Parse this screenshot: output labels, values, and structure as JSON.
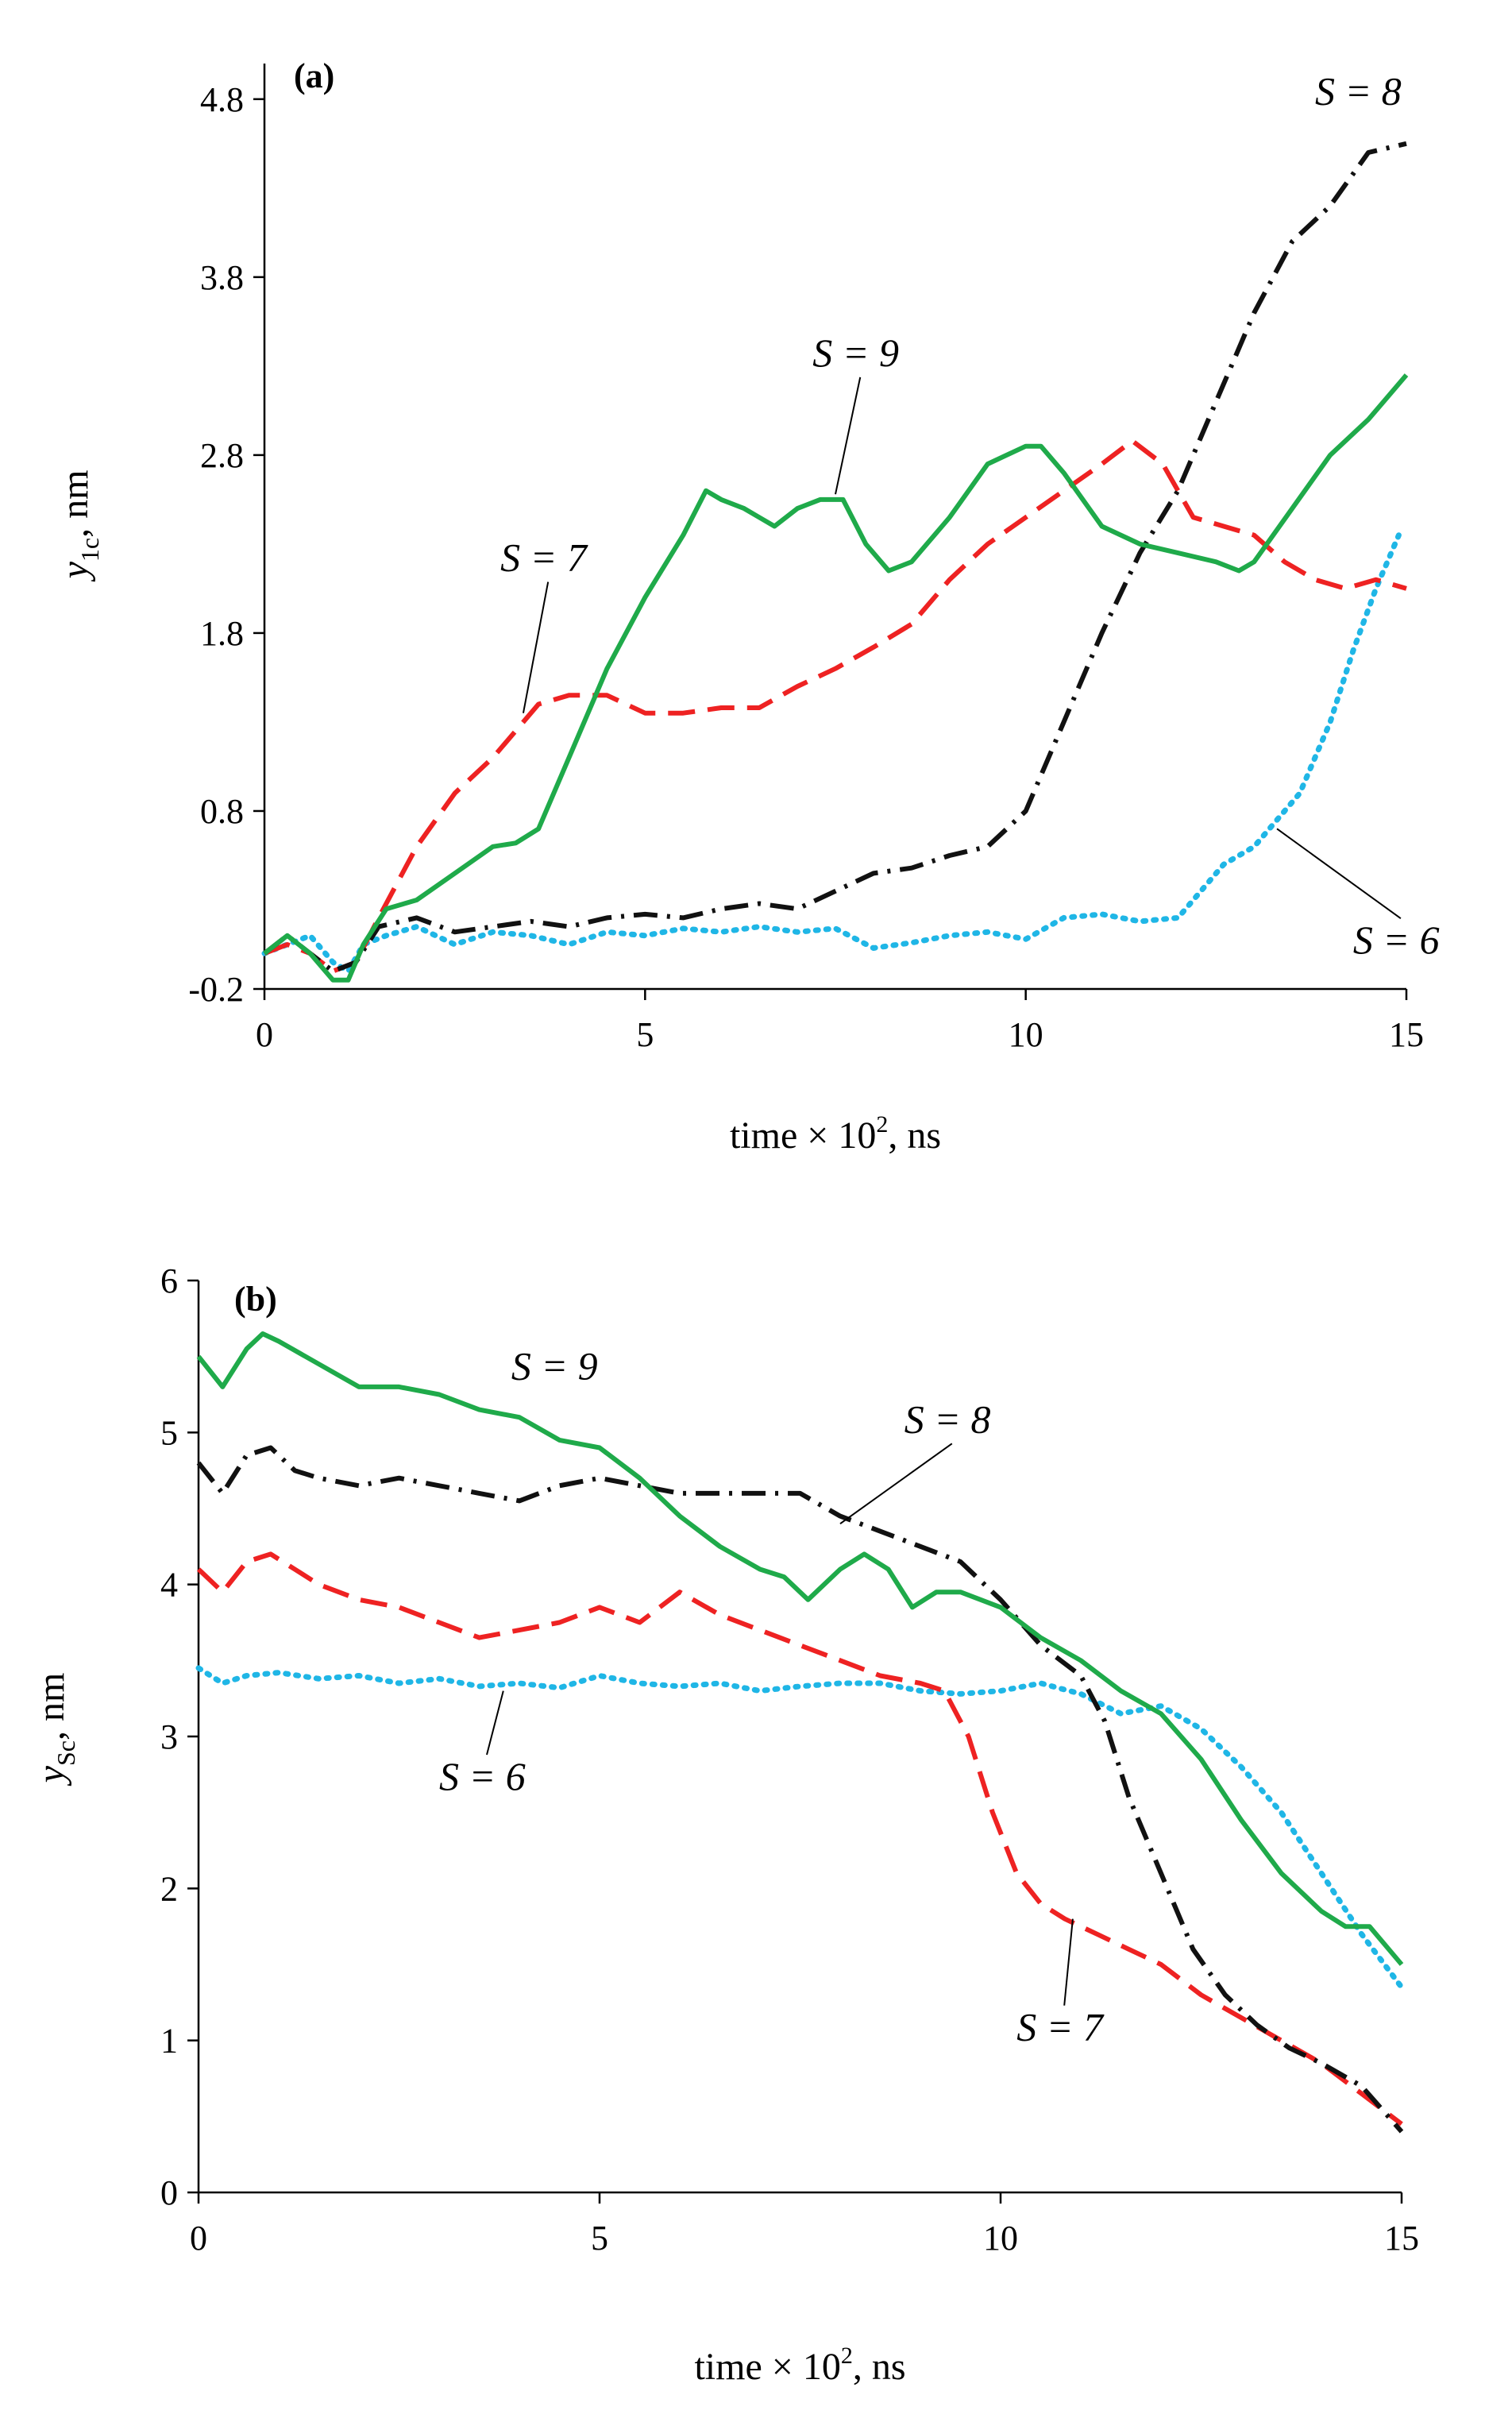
{
  "chart_data": [
    {
      "type": "line",
      "panel_label": "(a)",
      "ylabel_var": "y",
      "ylabel_sub": "1c",
      "ylabel_unit": ",  nm",
      "xlabel_pre": "time × 10",
      "xlabel_sup": "2",
      "xlabel_post": ", ns",
      "xlim": [
        0,
        15
      ],
      "ylim": [
        -0.2,
        5.0
      ],
      "xticks": [
        0,
        5,
        10,
        15
      ],
      "xtick_labels": [
        "0",
        "5",
        "10",
        "15"
      ],
      "yticks": [
        -0.2,
        0.8,
        1.8,
        2.8,
        3.8,
        4.8
      ],
      "ytick_labels": [
        "-0.2",
        "0.8",
        "1.8",
        "2.8",
        "3.8",
        "4.8"
      ],
      "grid": false,
      "series": [
        {
          "label": "S = 6",
          "color": "#1fb6e6",
          "style": "dotted",
          "x": [
            0,
            0.3,
            0.6,
            0.9,
            1.1,
            1.3,
            1.6,
            2.0,
            2.5,
            3.0,
            3.5,
            4.0,
            4.5,
            5.0,
            5.5,
            6.0,
            6.5,
            7.0,
            7.5,
            8.0,
            8.5,
            9.0,
            9.5,
            10.0,
            10.5,
            11.0,
            11.5,
            12.0,
            12.3,
            12.6,
            13.0,
            13.3,
            13.6,
            14.0,
            14.3,
            14.6,
            14.9
          ],
          "y": [
            0.0,
            0.05,
            0.1,
            -0.05,
            -0.1,
            0.05,
            0.1,
            0.15,
            0.05,
            0.12,
            0.1,
            0.05,
            0.12,
            0.1,
            0.14,
            0.12,
            0.15,
            0.12,
            0.14,
            0.03,
            0.06,
            0.1,
            0.12,
            0.08,
            0.2,
            0.22,
            0.18,
            0.2,
            0.35,
            0.5,
            0.6,
            0.75,
            0.9,
            1.3,
            1.7,
            2.05,
            2.35
          ]
        },
        {
          "label": "S = 7",
          "color": "#ee2222",
          "style": "dashed",
          "x": [
            0,
            0.3,
            0.6,
            0.9,
            1.2,
            1.5,
            2.0,
            2.5,
            3.0,
            3.3,
            3.6,
            4.0,
            4.5,
            5.0,
            5.5,
            6.0,
            6.5,
            7.0,
            7.5,
            8.0,
            8.5,
            9.0,
            9.5,
            10.0,
            10.5,
            11.0,
            11.4,
            11.8,
            12.2,
            12.6,
            13.0,
            13.4,
            13.8,
            14.2,
            14.6,
            15.0
          ],
          "y": [
            0.0,
            0.05,
            0.0,
            -0.1,
            -0.05,
            0.2,
            0.6,
            0.9,
            1.1,
            1.25,
            1.4,
            1.45,
            1.45,
            1.35,
            1.35,
            1.38,
            1.38,
            1.5,
            1.6,
            1.72,
            1.85,
            2.1,
            2.3,
            2.45,
            2.6,
            2.75,
            2.88,
            2.75,
            2.45,
            2.4,
            2.35,
            2.2,
            2.1,
            2.05,
            2.1,
            2.05
          ]
        },
        {
          "label": "S = 8",
          "color": "#111111",
          "style": "dashdot",
          "x": [
            0,
            0.3,
            0.6,
            0.9,
            1.2,
            1.5,
            2.0,
            2.5,
            3.0,
            3.5,
            4.0,
            4.5,
            5.0,
            5.5,
            6.0,
            6.5,
            7.0,
            7.5,
            8.0,
            8.5,
            9.0,
            9.5,
            10.0,
            10.5,
            11.0,
            11.5,
            12.0,
            12.5,
            13.0,
            13.5,
            14.0,
            14.5,
            15.0
          ],
          "y": [
            0.0,
            0.1,
            0.0,
            -0.1,
            -0.05,
            0.15,
            0.2,
            0.12,
            0.15,
            0.18,
            0.15,
            0.2,
            0.22,
            0.2,
            0.25,
            0.28,
            0.25,
            0.35,
            0.45,
            0.48,
            0.55,
            0.6,
            0.8,
            1.3,
            1.8,
            2.25,
            2.6,
            3.1,
            3.6,
            4.0,
            4.2,
            4.5,
            4.55
          ]
        },
        {
          "label": "S = 9",
          "color": "#1faa4a",
          "style": "solid",
          "x": [
            0,
            0.3,
            0.6,
            0.9,
            1.1,
            1.3,
            1.6,
            2.0,
            2.5,
            3.0,
            3.3,
            3.6,
            4.0,
            4.5,
            5.0,
            5.5,
            5.8,
            6.0,
            6.3,
            6.5,
            6.7,
            7.0,
            7.3,
            7.6,
            7.9,
            8.2,
            8.5,
            9.0,
            9.5,
            10.0,
            10.2,
            10.5,
            11.0,
            11.5,
            12.0,
            12.5,
            12.8,
            13.0,
            13.5,
            14.0,
            14.5,
            15.0
          ],
          "y": [
            0.0,
            0.1,
            0.0,
            -0.15,
            -0.15,
            0.05,
            0.25,
            0.3,
            0.45,
            0.6,
            0.62,
            0.7,
            1.1,
            1.6,
            2.0,
            2.35,
            2.6,
            2.55,
            2.5,
            2.45,
            2.4,
            2.5,
            2.55,
            2.55,
            2.3,
            2.15,
            2.2,
            2.45,
            2.75,
            2.85,
            2.85,
            2.7,
            2.4,
            2.3,
            2.25,
            2.2,
            2.15,
            2.2,
            2.5,
            2.8,
            3.0,
            3.25
          ]
        }
      ],
      "annotations": [
        {
          "series": "S = 9",
          "text": "S = 9",
          "text_x": 7.2,
          "text_y": 3.3,
          "point_x": 7.5,
          "point_y": 2.58
        },
        {
          "series": "S = 7",
          "text": "S = 7",
          "text_x": 3.1,
          "text_y": 2.15,
          "point_x": 3.4,
          "point_y": 1.35
        },
        {
          "series": "S = 8",
          "text": "S = 8",
          "text_x": 13.8,
          "text_y": 4.77,
          "point_x": null,
          "point_y": null
        },
        {
          "series": "S = 6",
          "text": "S = 6",
          "text_x": 14.3,
          "text_y": 0.0,
          "point_x": 13.3,
          "point_y": 0.7
        }
      ]
    },
    {
      "type": "line",
      "panel_label": "(b)",
      "ylabel_var": "y",
      "ylabel_sub": "Sc",
      "ylabel_unit": ",  nm",
      "xlabel_pre": "time × 10",
      "xlabel_sup": "2",
      "xlabel_post": ", ns",
      "xlim": [
        0,
        15
      ],
      "ylim": [
        0,
        6
      ],
      "xticks": [
        0,
        5,
        10,
        15
      ],
      "xtick_labels": [
        "0",
        "5",
        "10",
        "15"
      ],
      "yticks": [
        0,
        1,
        2,
        3,
        4,
        5,
        6
      ],
      "ytick_labels": [
        "0",
        "1",
        "2",
        "3",
        "4",
        "5",
        "6"
      ],
      "grid": false,
      "series": [
        {
          "label": "S = 6",
          "color": "#1fb6e6",
          "style": "dotted",
          "x": [
            0,
            0.3,
            0.6,
            1.0,
            1.5,
            2.0,
            2.5,
            3.0,
            3.5,
            4.0,
            4.5,
            5.0,
            5.5,
            6.0,
            6.5,
            7.0,
            7.5,
            8.0,
            8.5,
            9.0,
            9.5,
            10.0,
            10.5,
            11.0,
            11.5,
            12.0,
            12.5,
            13.0,
            13.5,
            14.0,
            14.5,
            15.0
          ],
          "y": [
            3.45,
            3.35,
            3.4,
            3.42,
            3.38,
            3.4,
            3.35,
            3.38,
            3.33,
            3.35,
            3.32,
            3.4,
            3.35,
            3.33,
            3.35,
            3.3,
            3.33,
            3.35,
            3.35,
            3.3,
            3.28,
            3.3,
            3.35,
            3.28,
            3.15,
            3.2,
            3.05,
            2.8,
            2.5,
            2.1,
            1.7,
            1.35
          ]
        },
        {
          "label": "S = 7",
          "color": "#ee2222",
          "style": "dashed",
          "x": [
            0,
            0.3,
            0.6,
            0.9,
            1.2,
            1.5,
            2.0,
            2.5,
            3.0,
            3.5,
            4.0,
            4.5,
            5.0,
            5.5,
            6.0,
            6.5,
            7.0,
            7.5,
            8.0,
            8.5,
            9.0,
            9.3,
            9.6,
            9.9,
            10.2,
            10.5,
            10.8,
            11.2,
            11.6,
            12.0,
            12.5,
            13.0,
            13.5,
            14.0,
            14.5,
            15.0
          ],
          "y": [
            4.1,
            3.95,
            4.15,
            4.2,
            4.1,
            4.0,
            3.9,
            3.85,
            3.75,
            3.65,
            3.7,
            3.75,
            3.85,
            3.75,
            3.95,
            3.8,
            3.7,
            3.6,
            3.5,
            3.4,
            3.35,
            3.3,
            3.0,
            2.5,
            2.1,
            1.9,
            1.8,
            1.7,
            1.6,
            1.5,
            1.3,
            1.15,
            1.0,
            0.85,
            0.65,
            0.45
          ]
        },
        {
          "label": "S = 8",
          "color": "#111111",
          "style": "dashdot",
          "x": [
            0,
            0.3,
            0.6,
            0.9,
            1.2,
            1.5,
            2.0,
            2.5,
            3.0,
            3.5,
            4.0,
            4.5,
            5.0,
            5.5,
            6.0,
            6.5,
            7.0,
            7.5,
            8.0,
            8.5,
            9.0,
            9.5,
            10.0,
            10.5,
            11.0,
            11.3,
            11.6,
            12.0,
            12.4,
            12.8,
            13.2,
            13.6,
            14.0,
            14.5,
            15.0
          ],
          "y": [
            4.8,
            4.6,
            4.85,
            4.9,
            4.75,
            4.7,
            4.65,
            4.7,
            4.65,
            4.6,
            4.55,
            4.65,
            4.7,
            4.65,
            4.6,
            4.6,
            4.6,
            4.6,
            4.45,
            4.35,
            4.25,
            4.15,
            3.9,
            3.6,
            3.4,
            3.1,
            2.6,
            2.1,
            1.6,
            1.3,
            1.1,
            0.95,
            0.85,
            0.7,
            0.4
          ]
        },
        {
          "label": "S = 9",
          "color": "#1faa4a",
          "style": "solid",
          "x": [
            0,
            0.3,
            0.6,
            0.8,
            1.0,
            1.5,
            2.0,
            2.5,
            3.0,
            3.5,
            4.0,
            4.5,
            5.0,
            5.5,
            6.0,
            6.5,
            7.0,
            7.3,
            7.6,
            8.0,
            8.3,
            8.6,
            8.9,
            9.2,
            9.5,
            10.0,
            10.5,
            11.0,
            11.5,
            12.0,
            12.5,
            13.0,
            13.5,
            14.0,
            14.3,
            14.6,
            15.0
          ],
          "y": [
            5.5,
            5.3,
            5.55,
            5.65,
            5.6,
            5.45,
            5.3,
            5.3,
            5.25,
            5.15,
            5.1,
            4.95,
            4.9,
            4.7,
            4.45,
            4.25,
            4.1,
            4.05,
            3.9,
            4.1,
            4.2,
            4.1,
            3.85,
            3.95,
            3.95,
            3.85,
            3.65,
            3.5,
            3.3,
            3.15,
            2.85,
            2.45,
            2.1,
            1.85,
            1.75,
            1.75,
            1.5
          ]
        }
      ],
      "annotations": [
        {
          "series": "S = 9",
          "text": "S = 9",
          "text_x": 3.9,
          "text_y": 5.35,
          "point_x": null,
          "point_y": null
        },
        {
          "series": "S = 8",
          "text": "S = 8",
          "text_x": 8.8,
          "text_y": 5.0,
          "point_x": 8.0,
          "point_y": 4.4
        },
        {
          "series": "S = 6",
          "text": "S = 6",
          "text_x": 3.0,
          "text_y": 2.65,
          "point_x": 3.8,
          "point_y": 3.3
        },
        {
          "series": "S = 7",
          "text": "S = 7",
          "text_x": 10.2,
          "text_y": 1.0,
          "point_x": 10.9,
          "point_y": 1.8
        }
      ]
    }
  ]
}
